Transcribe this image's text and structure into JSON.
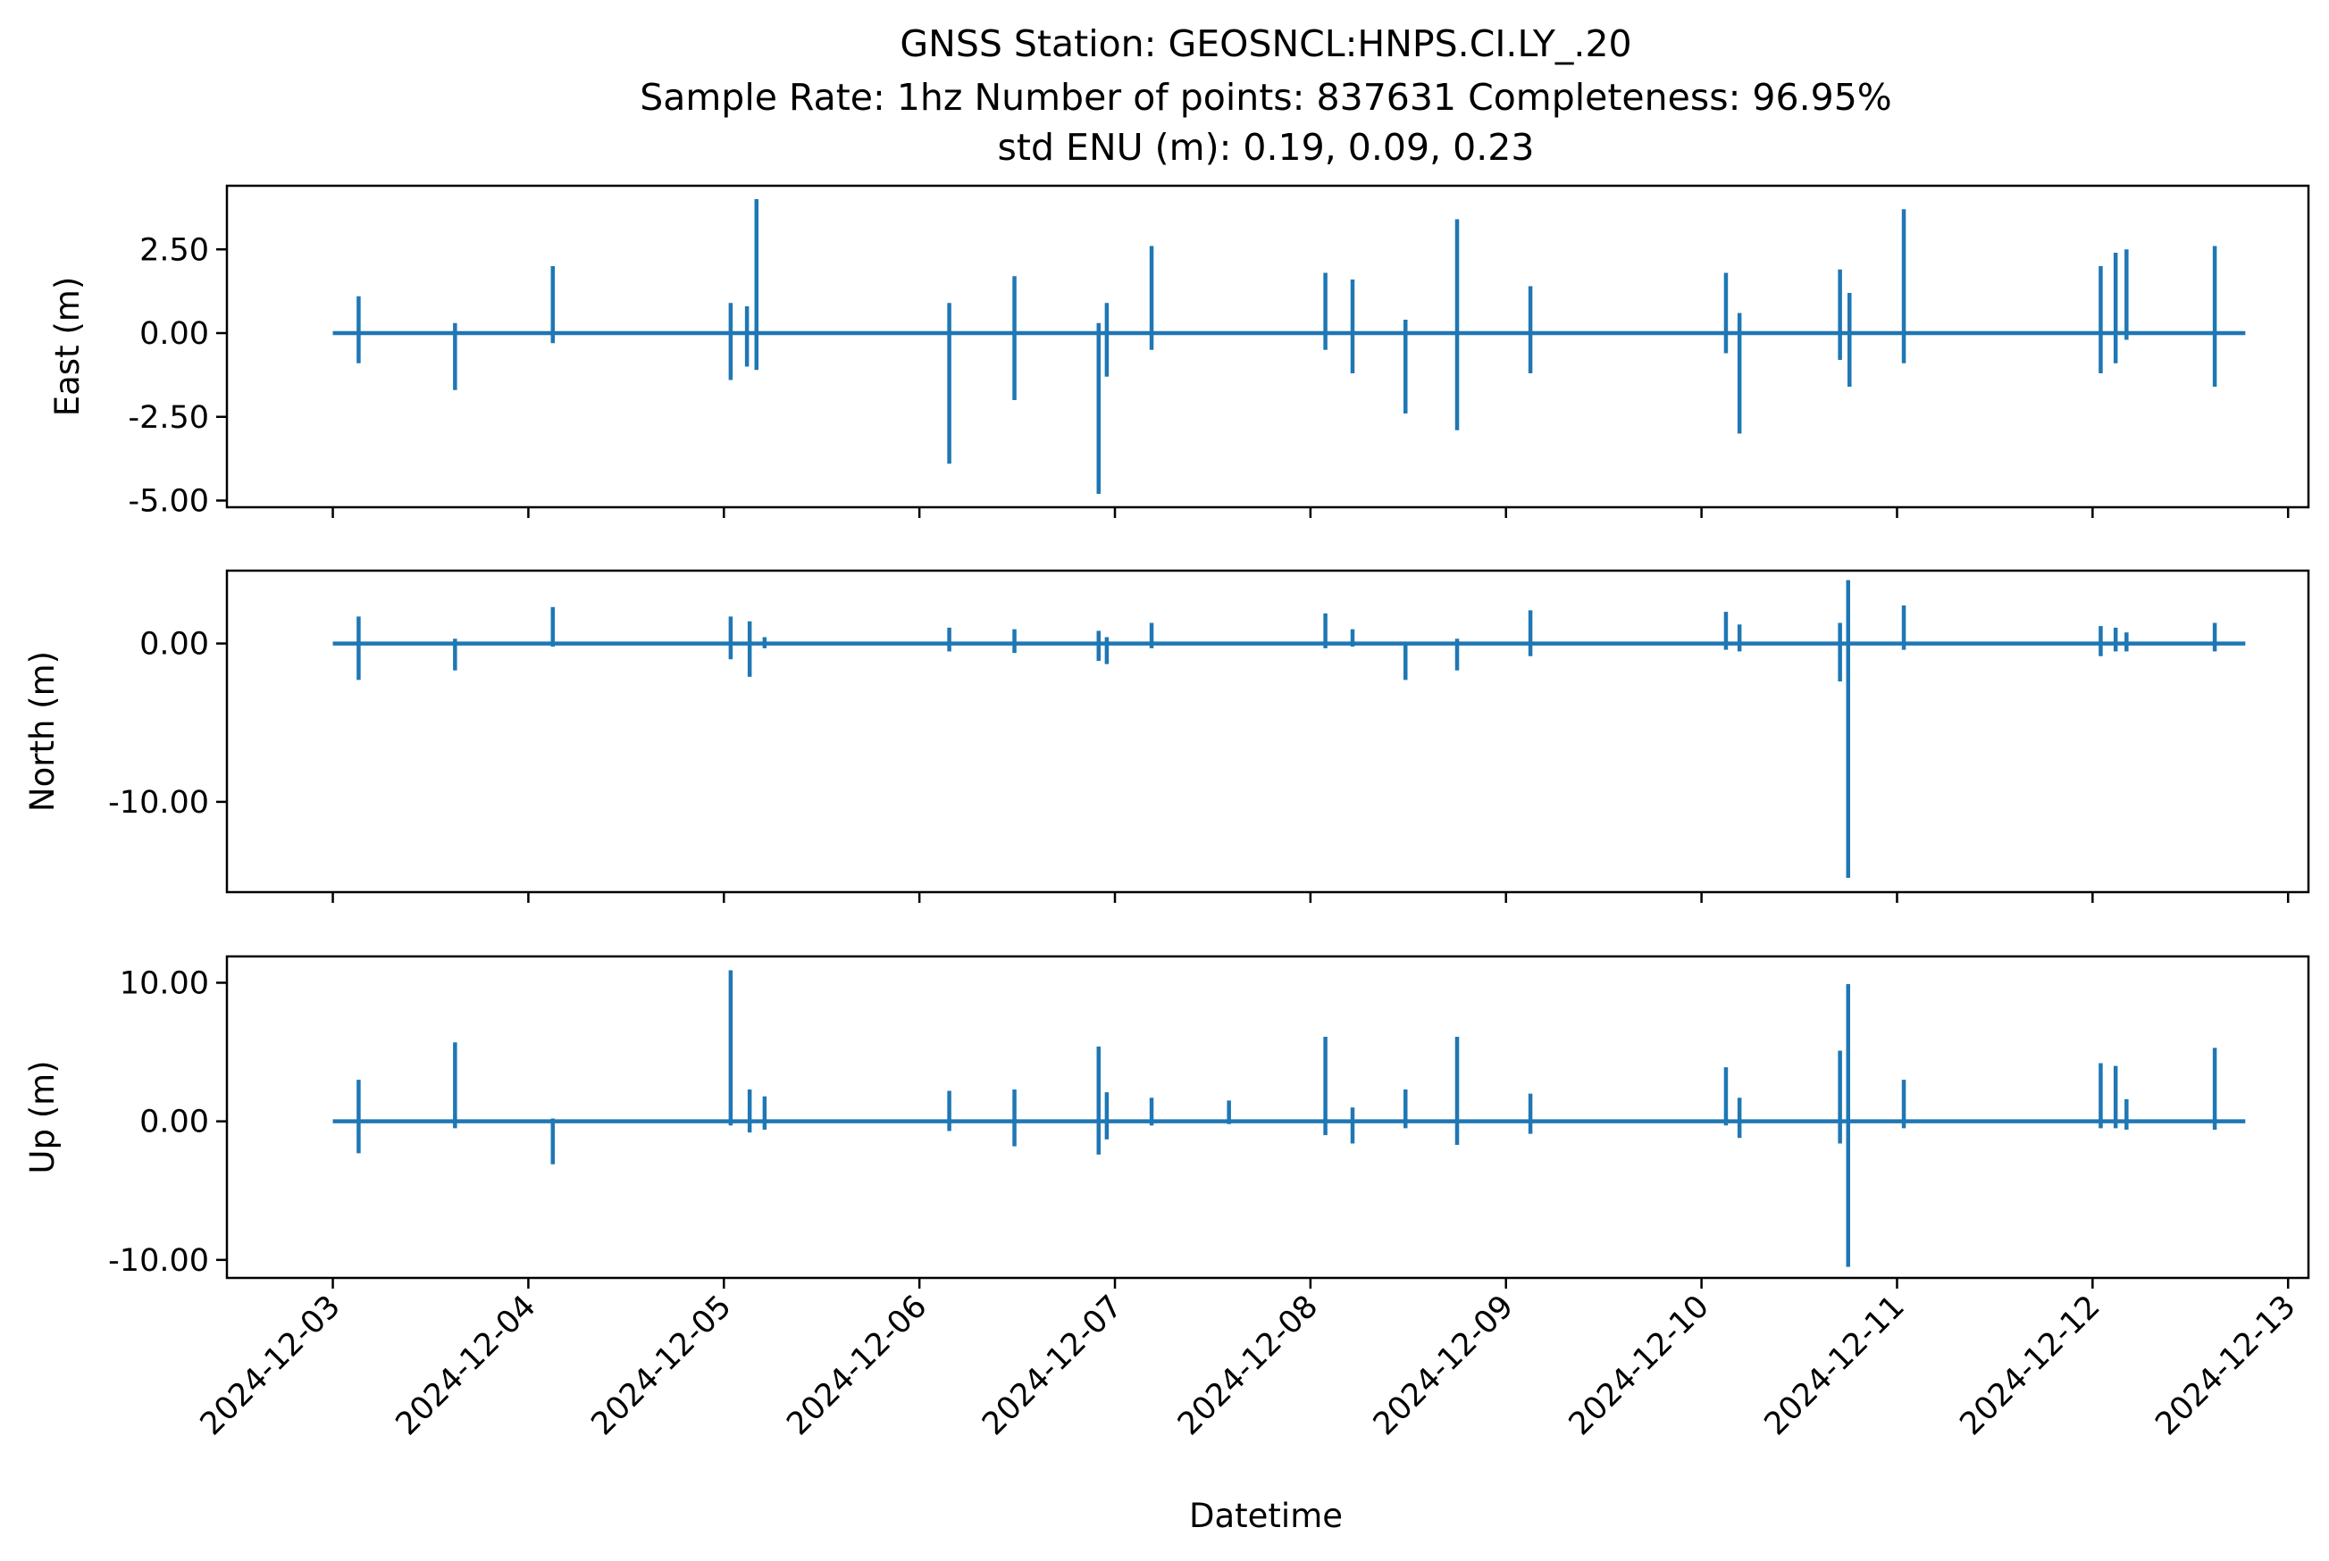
{
  "chart_data": {
    "type": "line",
    "title": [
      "GNSS Station: GEOSNCL:HNPS.CI.LY_.20",
      "Sample Rate: 1hz   Number of points: 837631    Completeness:  96.95%",
      "std ENU (m):  0.19, 0.09, 0.23"
    ],
    "xlabel": "Datetime",
    "x_ticks": [
      "2024-12-03",
      "2024-12-04",
      "2024-12-05",
      "2024-12-06",
      "2024-12-07",
      "2024-12-08",
      "2024-12-09",
      "2024-12-10",
      "2024-12-11",
      "2024-12-12",
      "2024-12-13"
    ],
    "xlim": [
      "2024-12-02T11:00",
      "2024-12-13T02:30"
    ],
    "line_color": "#1f77b4",
    "grid": false,
    "panels": [
      {
        "name": "east",
        "ylabel": "East (m)",
        "ylim": [
          -5.2,
          4.4
        ],
        "y_ticks": [
          2.5,
          0.0,
          -2.5,
          -5.0
        ],
        "y_tick_labels": [
          "2.50",
          "0.00",
          "-2.50",
          "-5.00"
        ],
        "baseline": 0.0,
        "spikes": [
          {
            "t": "2024-12-03T03:10",
            "hi": 1.1,
            "lo": -0.9
          },
          {
            "t": "2024-12-03T15:00",
            "hi": 0.3,
            "lo": -1.7
          },
          {
            "t": "2024-12-04T03:00",
            "hi": 2.0,
            "lo": -0.3
          },
          {
            "t": "2024-12-05T00:50",
            "hi": 0.9,
            "lo": -1.4
          },
          {
            "t": "2024-12-05T02:50",
            "hi": 0.8,
            "lo": -1.0
          },
          {
            "t": "2024-12-05T04:00",
            "hi": 4.0,
            "lo": -1.1
          },
          {
            "t": "2024-12-06T03:40",
            "hi": 0.9,
            "lo": -3.9
          },
          {
            "t": "2024-12-06T11:40",
            "hi": 1.7,
            "lo": -2.0
          },
          {
            "t": "2024-12-06T22:00",
            "hi": 0.3,
            "lo": -4.8
          },
          {
            "t": "2024-12-06T23:00",
            "hi": 0.9,
            "lo": -1.3
          },
          {
            "t": "2024-12-07T04:30",
            "hi": 2.6,
            "lo": -0.5
          },
          {
            "t": "2024-12-08T01:50",
            "hi": 1.8,
            "lo": -0.5
          },
          {
            "t": "2024-12-08T05:10",
            "hi": 1.6,
            "lo": -1.2
          },
          {
            "t": "2024-12-08T11:40",
            "hi": 0.4,
            "lo": -2.4
          },
          {
            "t": "2024-12-08T18:00",
            "hi": 3.4,
            "lo": -2.9
          },
          {
            "t": "2024-12-09T03:00",
            "hi": 1.4,
            "lo": -1.2
          },
          {
            "t": "2024-12-10T03:00",
            "hi": 1.8,
            "lo": -0.6
          },
          {
            "t": "2024-12-10T04:40",
            "hi": 0.6,
            "lo": -3.0
          },
          {
            "t": "2024-12-10T17:00",
            "hi": 1.9,
            "lo": -0.8
          },
          {
            "t": "2024-12-10T18:10",
            "hi": 1.2,
            "lo": -1.6
          },
          {
            "t": "2024-12-11T00:50",
            "hi": 3.7,
            "lo": -0.9
          },
          {
            "t": "2024-12-12T01:00",
            "hi": 2.0,
            "lo": -1.2
          },
          {
            "t": "2024-12-12T02:50",
            "hi": 2.4,
            "lo": -0.9
          },
          {
            "t": "2024-12-12T04:10",
            "hi": 2.5,
            "lo": -0.2
          },
          {
            "t": "2024-12-12T15:00",
            "hi": 2.6,
            "lo": -1.6
          }
        ]
      },
      {
        "name": "north",
        "ylabel": "North (m)",
        "ylim": [
          -15.7,
          4.6
        ],
        "y_ticks": [
          0.0,
          -10.0
        ],
        "y_tick_labels": [
          "0.00",
          "-10.00"
        ],
        "baseline": 0.0,
        "spikes": [
          {
            "t": "2024-12-03T03:10",
            "hi": 1.7,
            "lo": -2.3
          },
          {
            "t": "2024-12-03T15:00",
            "hi": 0.3,
            "lo": -1.7
          },
          {
            "t": "2024-12-04T03:00",
            "hi": 2.3,
            "lo": -0.2
          },
          {
            "t": "2024-12-05T00:50",
            "hi": 1.7,
            "lo": -1.0
          },
          {
            "t": "2024-12-05T03:10",
            "hi": 1.4,
            "lo": -2.1
          },
          {
            "t": "2024-12-05T05:00",
            "hi": 0.4,
            "lo": -0.3
          },
          {
            "t": "2024-12-06T03:40",
            "hi": 1.0,
            "lo": -0.5
          },
          {
            "t": "2024-12-06T11:40",
            "hi": 0.9,
            "lo": -0.6
          },
          {
            "t": "2024-12-06T22:00",
            "hi": 0.8,
            "lo": -1.1
          },
          {
            "t": "2024-12-06T23:00",
            "hi": 0.4,
            "lo": -1.3
          },
          {
            "t": "2024-12-07T04:30",
            "hi": 1.3,
            "lo": -0.3
          },
          {
            "t": "2024-12-08T01:50",
            "hi": 1.9,
            "lo": -0.3
          },
          {
            "t": "2024-12-08T05:10",
            "hi": 0.9,
            "lo": -0.2
          },
          {
            "t": "2024-12-08T11:40",
            "hi": 0.1,
            "lo": -2.3
          },
          {
            "t": "2024-12-08T18:00",
            "hi": 0.3,
            "lo": -1.7
          },
          {
            "t": "2024-12-09T03:00",
            "hi": 2.1,
            "lo": -0.8
          },
          {
            "t": "2024-12-10T03:00",
            "hi": 2.0,
            "lo": -0.4
          },
          {
            "t": "2024-12-10T04:40",
            "hi": 1.2,
            "lo": -0.5
          },
          {
            "t": "2024-12-10T17:00",
            "hi": 1.3,
            "lo": -2.4
          },
          {
            "t": "2024-12-10T18:00",
            "hi": 4.0,
            "lo": -14.8
          },
          {
            "t": "2024-12-11T00:50",
            "hi": 2.4,
            "lo": -0.4
          },
          {
            "t": "2024-12-12T01:00",
            "hi": 1.1,
            "lo": -0.8
          },
          {
            "t": "2024-12-12T02:50",
            "hi": 1.0,
            "lo": -0.5
          },
          {
            "t": "2024-12-12T04:10",
            "hi": 0.7,
            "lo": -0.5
          },
          {
            "t": "2024-12-12T15:00",
            "hi": 1.3,
            "lo": -0.5
          }
        ]
      },
      {
        "name": "up",
        "ylabel": "Up (m)",
        "ylim": [
          -11.3,
          11.9
        ],
        "y_ticks": [
          10.0,
          0.0,
          -10.0
        ],
        "y_tick_labels": [
          "10.00",
          "0.00",
          "-10.00"
        ],
        "baseline": 0.0,
        "spikes": [
          {
            "t": "2024-12-03T03:10",
            "hi": 3.0,
            "lo": -2.3
          },
          {
            "t": "2024-12-03T15:00",
            "hi": 5.7,
            "lo": -0.5
          },
          {
            "t": "2024-12-04T03:00",
            "hi": 0.2,
            "lo": -3.1
          },
          {
            "t": "2024-12-05T00:50",
            "hi": 10.9,
            "lo": -0.3
          },
          {
            "t": "2024-12-05T03:10",
            "hi": 2.3,
            "lo": -0.8
          },
          {
            "t": "2024-12-05T05:00",
            "hi": 1.8,
            "lo": -0.6
          },
          {
            "t": "2024-12-06T03:40",
            "hi": 2.2,
            "lo": -0.7
          },
          {
            "t": "2024-12-06T11:40",
            "hi": 2.3,
            "lo": -1.8
          },
          {
            "t": "2024-12-06T22:00",
            "hi": 5.4,
            "lo": -2.4
          },
          {
            "t": "2024-12-06T23:00",
            "hi": 2.1,
            "lo": -1.3
          },
          {
            "t": "2024-12-07T04:30",
            "hi": 1.7,
            "lo": -0.3
          },
          {
            "t": "2024-12-07T14:00",
            "hi": 1.5,
            "lo": -0.2
          },
          {
            "t": "2024-12-08T01:50",
            "hi": 6.1,
            "lo": -1.0
          },
          {
            "t": "2024-12-08T05:10",
            "hi": 1.0,
            "lo": -1.6
          },
          {
            "t": "2024-12-08T11:40",
            "hi": 2.3,
            "lo": -0.5
          },
          {
            "t": "2024-12-08T18:00",
            "hi": 6.1,
            "lo": -1.7
          },
          {
            "t": "2024-12-09T03:00",
            "hi": 2.0,
            "lo": -0.9
          },
          {
            "t": "2024-12-10T03:00",
            "hi": 3.9,
            "lo": -0.3
          },
          {
            "t": "2024-12-10T04:40",
            "hi": 1.7,
            "lo": -1.2
          },
          {
            "t": "2024-12-10T17:00",
            "hi": 5.1,
            "lo": -1.6
          },
          {
            "t": "2024-12-10T18:00",
            "hi": 9.9,
            "lo": -10.5
          },
          {
            "t": "2024-12-11T00:50",
            "hi": 3.0,
            "lo": -0.5
          },
          {
            "t": "2024-12-12T01:00",
            "hi": 4.2,
            "lo": -0.5
          },
          {
            "t": "2024-12-12T02:50",
            "hi": 4.0,
            "lo": -0.5
          },
          {
            "t": "2024-12-12T04:10",
            "hi": 1.6,
            "lo": -0.6
          },
          {
            "t": "2024-12-12T15:00",
            "hi": 5.3,
            "lo": -0.6
          }
        ]
      }
    ]
  }
}
